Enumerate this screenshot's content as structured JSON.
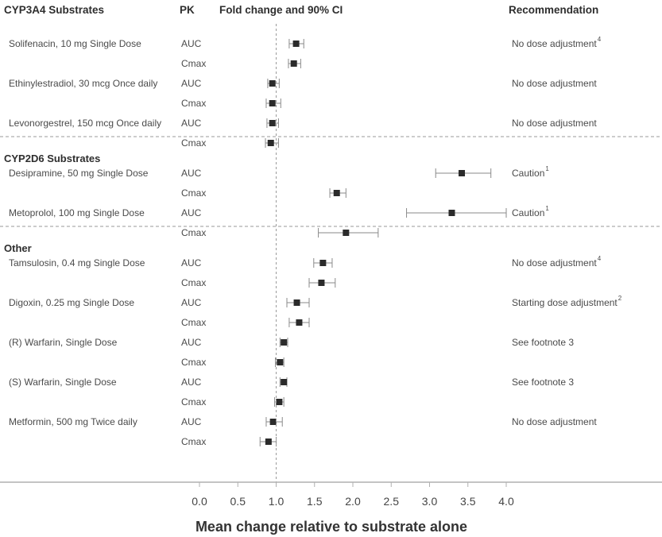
{
  "chart_data": {
    "type": "forest",
    "title": "",
    "column_headers": {
      "group": "CYP3A4 Substrates",
      "pk": "PK",
      "plot": "Fold change and 90% CI",
      "recommendation": "Recommendation"
    },
    "xlabel": "Mean change relative to substrate alone",
    "xlim": [
      0.0,
      4.0
    ],
    "xticks": [
      "0.0",
      "0.5",
      "1.0",
      "1.5",
      "2.0",
      "2.5",
      "3.0",
      "3.5",
      "4.0"
    ],
    "reference_line": 1.0,
    "groups": [
      {
        "name": "CYP3A4 Substrates",
        "show_label_in_rows": false,
        "drugs": [
          {
            "name": "Solifenacin, 10 mg Single Dose",
            "recommendation": "No dose adjustment",
            "footnote": "4",
            "rows": [
              {
                "pk": "AUC",
                "value": 1.26,
                "ci": [
                  1.17,
                  1.36
                ]
              },
              {
                "pk": "Cmax",
                "value": 1.23,
                "ci": [
                  1.16,
                  1.32
                ]
              }
            ]
          },
          {
            "name": "Ethinylestradiol, 30 mcg Once daily",
            "recommendation": "No dose adjustment",
            "footnote": "",
            "rows": [
              {
                "pk": "AUC",
                "value": 0.95,
                "ci": [
                  0.89,
                  1.04
                ]
              },
              {
                "pk": "Cmax",
                "value": 0.95,
                "ci": [
                  0.87,
                  1.06
                ]
              }
            ]
          },
          {
            "name": "Levonorgestrel, 150 mcg Once daily",
            "recommendation": "No dose adjustment",
            "footnote": "",
            "rows": [
              {
                "pk": "AUC",
                "value": 0.95,
                "ci": [
                  0.88,
                  1.03
                ]
              },
              {
                "pk": "Cmax",
                "value": 0.93,
                "ci": [
                  0.86,
                  1.03
                ]
              }
            ]
          }
        ]
      },
      {
        "name": "CYP2D6 Substrates",
        "show_label_in_rows": true,
        "drugs": [
          {
            "name": "Desipramine, 50 mg Single Dose",
            "recommendation": "Caution",
            "footnote": "1",
            "rows": [
              {
                "pk": "AUC",
                "value": 3.42,
                "ci": [
                  3.08,
                  3.8
                ]
              },
              {
                "pk": "Cmax",
                "value": 1.79,
                "ci": [
                  1.7,
                  1.91
                ]
              }
            ]
          },
          {
            "name": "Metoprolol, 100 mg Single Dose",
            "recommendation": "Caution",
            "footnote": "1",
            "rows": [
              {
                "pk": "AUC",
                "value": 3.29,
                "ci": [
                  2.7,
                  4.0
                ]
              },
              {
                "pk": "Cmax",
                "value": 1.91,
                "ci": [
                  1.55,
                  2.33
                ]
              }
            ]
          }
        ]
      },
      {
        "name": "Other",
        "show_label_in_rows": true,
        "drugs": [
          {
            "name": "Tamsulosin, 0.4 mg Single Dose",
            "recommendation": "No dose adjustment",
            "footnote": "4",
            "rows": [
              {
                "pk": "AUC",
                "value": 1.61,
                "ci": [
                  1.49,
                  1.73
                ]
              },
              {
                "pk": "Cmax",
                "value": 1.59,
                "ci": [
                  1.43,
                  1.77
                ]
              }
            ]
          },
          {
            "name": "Digoxin, 0.25 mg Single Dose",
            "recommendation": "Starting dose adjustment",
            "footnote": "2",
            "rows": [
              {
                "pk": "AUC",
                "value": 1.27,
                "ci": [
                  1.14,
                  1.43
                ]
              },
              {
                "pk": "Cmax",
                "value": 1.3,
                "ci": [
                  1.17,
                  1.43
                ]
              }
            ]
          },
          {
            "name": "(R) Warfarin, Single Dose",
            "recommendation": "See footnote 3",
            "footnote": "",
            "rows": [
              {
                "pk": "AUC",
                "value": 1.1,
                "ci": [
                  1.05,
                  1.15
                ]
              },
              {
                "pk": "Cmax",
                "value": 1.05,
                "ci": [
                  0.99,
                  1.1
                ]
              }
            ]
          },
          {
            "name": "(S) Warfarin, Single Dose",
            "recommendation": "See footnote 3",
            "footnote": "",
            "rows": [
              {
                "pk": "AUC",
                "value": 1.1,
                "ci": [
                  1.05,
                  1.14
                ]
              },
              {
                "pk": "Cmax",
                "value": 1.04,
                "ci": [
                  0.98,
                  1.1
                ]
              }
            ]
          },
          {
            "name": "Metformin, 500 mg Twice daily",
            "recommendation": "No dose adjustment",
            "footnote": "",
            "rows": [
              {
                "pk": "AUC",
                "value": 0.96,
                "ci": [
                  0.87,
                  1.08
                ]
              },
              {
                "pk": "Cmax",
                "value": 0.9,
                "ci": [
                  0.79,
                  1.0
                ]
              }
            ]
          }
        ]
      }
    ],
    "colors": {
      "marker": "#2b2b2b",
      "ci_line": "#8a8a8a",
      "divider": "#9a9a9a",
      "axis": "#b0b0b0"
    }
  }
}
